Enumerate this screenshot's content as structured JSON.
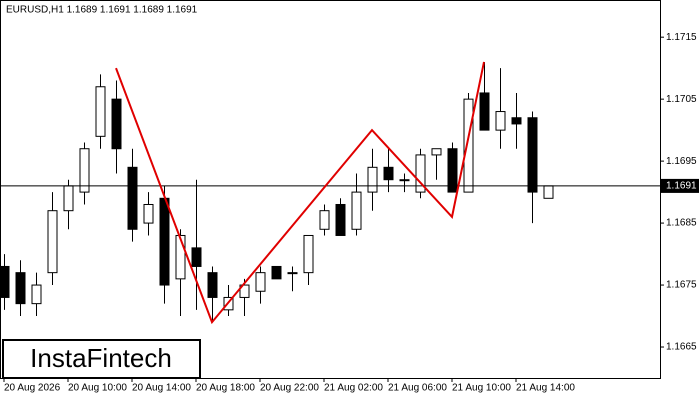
{
  "chart_data": {
    "type": "candlestick",
    "title": "EURUSD,H1  1.1689 1.1691 1.1689 1.1691",
    "watermark": "InstaFintech",
    "categories": [
      "20 Aug 2026",
      null,
      null,
      null,
      "20 Aug 10:00",
      null,
      null,
      null,
      "20 Aug 14:00",
      null,
      null,
      null,
      "20 Aug 18:00",
      null,
      null,
      null,
      "20 Aug 22:00",
      null,
      null,
      null,
      "21 Aug 02:00",
      null,
      null,
      null,
      "21 Aug 06:00",
      null,
      null,
      null,
      "21 Aug 10:00",
      null,
      null,
      null,
      "21 Aug 14:00",
      null,
      null
    ],
    "open": [
      1.1678,
      1.1677,
      1.1672,
      1.1677,
      1.1687,
      1.169,
      1.1699,
      1.1705,
      1.1694,
      1.1685,
      1.1689,
      1.1676,
      1.1681,
      1.1677,
      1.1671,
      1.1673,
      1.1674,
      1.1678,
      1.1677,
      1.1677,
      1.1684,
      1.1688,
      1.1684,
      1.169,
      1.1694,
      1.1692,
      1.169,
      1.1696,
      1.1697,
      1.169,
      1.1706,
      1.17,
      1.1702,
      1.1702,
      1.1689
    ],
    "high": [
      1.168,
      1.1679,
      1.1677,
      1.169,
      1.1692,
      1.1698,
      1.1709,
      1.1708,
      1.1697,
      1.169,
      1.1691,
      1.1684,
      1.1692,
      1.1678,
      1.1675,
      1.1676,
      1.1678,
      1.1678,
      1.1678,
      1.1683,
      1.1688,
      1.1689,
      1.1693,
      1.1697,
      1.1697,
      1.1693,
      1.1697,
      1.1697,
      1.1698,
      1.1706,
      1.1711,
      1.171,
      1.1706,
      1.1703,
      1.1691
    ],
    "low": [
      1.1671,
      1.167,
      1.167,
      1.1675,
      1.1684,
      1.1688,
      1.1697,
      1.1693,
      1.1682,
      1.1683,
      1.1672,
      1.167,
      1.1671,
      1.1669,
      1.167,
      1.167,
      1.1672,
      1.1676,
      1.1674,
      1.1675,
      1.1683,
      1.1683,
      1.1683,
      1.1687,
      1.169,
      1.169,
      1.1689,
      1.1692,
      1.169,
      1.169,
      1.17,
      1.1697,
      1.1697,
      1.1685,
      1.1689
    ],
    "close": [
      1.1673,
      1.1672,
      1.1675,
      1.1687,
      1.1691,
      1.1697,
      1.1707,
      1.1697,
      1.1684,
      1.1688,
      1.1675,
      1.1683,
      1.1678,
      1.1673,
      1.1673,
      1.1675,
      1.1677,
      1.1676,
      1.1677,
      1.1683,
      1.1687,
      1.1683,
      1.169,
      1.1694,
      1.1692,
      1.1692,
      1.1696,
      1.1697,
      1.169,
      1.1705,
      1.17,
      1.1703,
      1.1701,
      1.169,
      1.1691
    ],
    "current_price": 1.1691,
    "pattern": {
      "color": "#e00000",
      "points": [
        {
          "index": 7,
          "price": 1.171
        },
        {
          "index": 13,
          "price": 1.1669
        },
        {
          "index": 23,
          "price": 1.17
        },
        {
          "index": 28,
          "price": 1.1686
        },
        {
          "index": 30,
          "price": 1.1711
        }
      ]
    },
    "ylim": [
      1.166,
      1.1721
    ],
    "yticks": [
      1.1665,
      1.1675,
      1.1685,
      1.1695,
      1.1705,
      1.1715
    ]
  }
}
